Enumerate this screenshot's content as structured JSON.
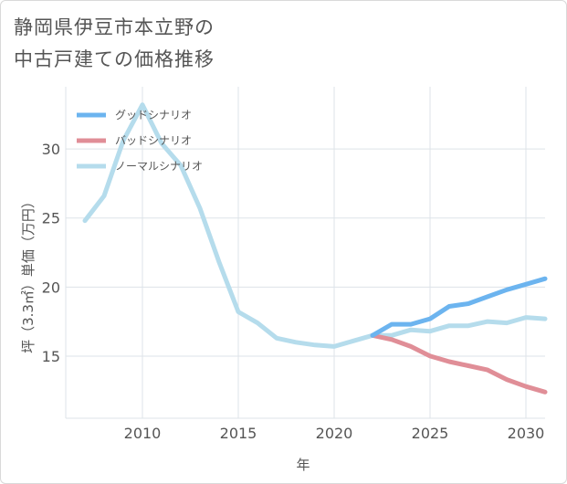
{
  "title_lines": [
    "静岡県伊豆市本立野の",
    "中古戸建ての価格推移"
  ],
  "chart_data": {
    "type": "line",
    "title": "静岡県伊豆市本立野の中古戸建ての価格推移",
    "xlabel": "年",
    "ylabel": "坪（3.3㎡）単価（万円）",
    "xlim": [
      2006,
      2031
    ],
    "ylim": [
      10.5,
      34.5
    ],
    "xticks": [
      2010,
      2015,
      2020,
      2025,
      2030
    ],
    "yticks": [
      15,
      20,
      25,
      30
    ],
    "grid": true,
    "legend_position": "top-left",
    "series": [
      {
        "name": "グッドシナリオ",
        "color": "#6cb4ef",
        "x": [
          2022,
          2023,
          2024,
          2025,
          2026,
          2027,
          2028,
          2029,
          2030,
          2031
        ],
        "values": [
          16.5,
          17.3,
          17.3,
          17.7,
          18.6,
          18.8,
          19.3,
          19.8,
          20.2,
          20.6
        ]
      },
      {
        "name": "バッドシナリオ",
        "color": "#e08e97",
        "x": [
          2022,
          2023,
          2024,
          2025,
          2026,
          2027,
          2028,
          2029,
          2030,
          2031
        ],
        "values": [
          16.5,
          16.2,
          15.7,
          15.0,
          14.6,
          14.3,
          14.0,
          13.3,
          12.8,
          12.4
        ]
      },
      {
        "name": "ノーマルシナリオ",
        "color": "#b5dcec",
        "x": [
          2007,
          2008,
          2009,
          2010,
          2011,
          2012,
          2013,
          2014,
          2015,
          2016,
          2017,
          2018,
          2019,
          2020,
          2021,
          2022,
          2023,
          2024,
          2025,
          2026,
          2027,
          2028,
          2029,
          2030,
          2031
        ],
        "values": [
          24.8,
          26.6,
          30.6,
          33.2,
          30.4,
          28.8,
          25.7,
          21.8,
          18.2,
          17.4,
          16.3,
          16.0,
          15.8,
          15.7,
          16.1,
          16.5,
          16.5,
          16.9,
          16.8,
          17.2,
          17.2,
          17.5,
          17.4,
          17.8,
          17.7
        ]
      }
    ]
  }
}
